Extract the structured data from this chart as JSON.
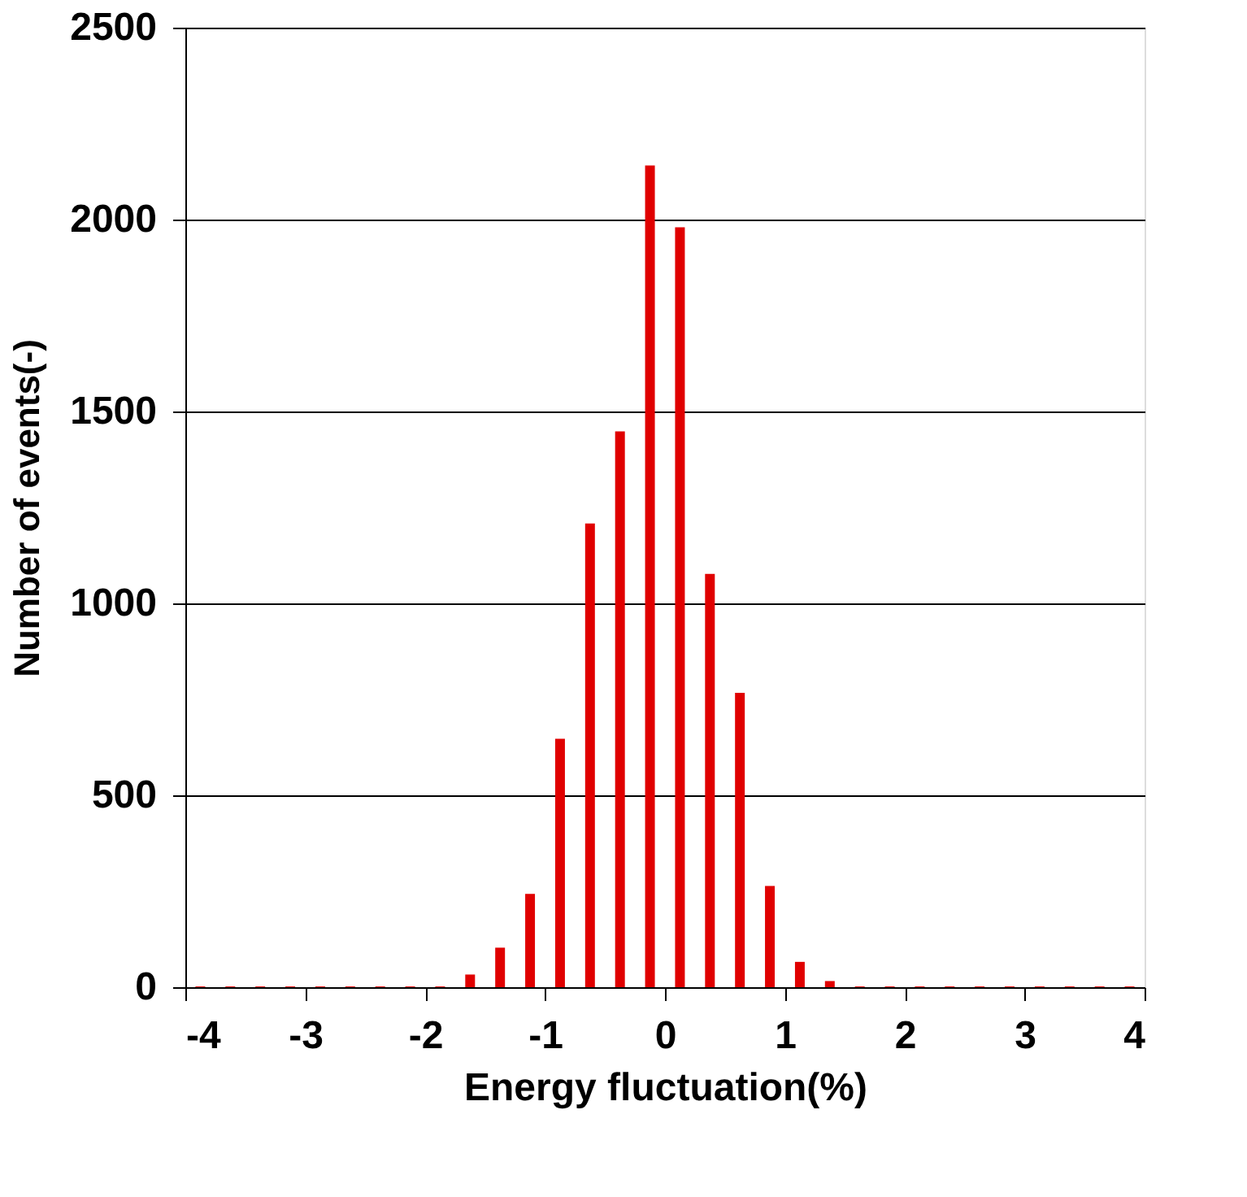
{
  "chart_data": {
    "type": "bar",
    "xlabel": "Energy fluctuation(%)",
    "ylabel": "Number of events(-)",
    "x": [
      -3.875,
      -3.625,
      -3.375,
      -3.125,
      -2.875,
      -2.625,
      -2.375,
      -2.125,
      -1.875,
      -1.625,
      -1.375,
      -1.125,
      -0.875,
      -0.625,
      -0.375,
      -0.125,
      0.125,
      0.375,
      0.625,
      0.875,
      1.125,
      1.375,
      1.625,
      1.875,
      2.125,
      2.375,
      2.625,
      2.875,
      3.125,
      3.375,
      3.625,
      3.875
    ],
    "values": [
      2,
      2,
      2,
      2,
      2,
      2,
      2,
      2,
      2,
      33,
      103,
      243,
      647,
      1208,
      1448,
      2141,
      1980,
      1077,
      767,
      264,
      66,
      16,
      2,
      2,
      2,
      2,
      2,
      2,
      2,
      2,
      2,
      2
    ],
    "color": "#e00000",
    "xlim": [
      -4,
      4
    ],
    "xticks": [
      -4,
      -3,
      -2,
      -1,
      0,
      1,
      2,
      3,
      4
    ],
    "ylim": [
      0,
      2500
    ],
    "yticks": [
      0,
      500,
      1000,
      1500,
      2000,
      2500
    ],
    "grid": "y"
  }
}
